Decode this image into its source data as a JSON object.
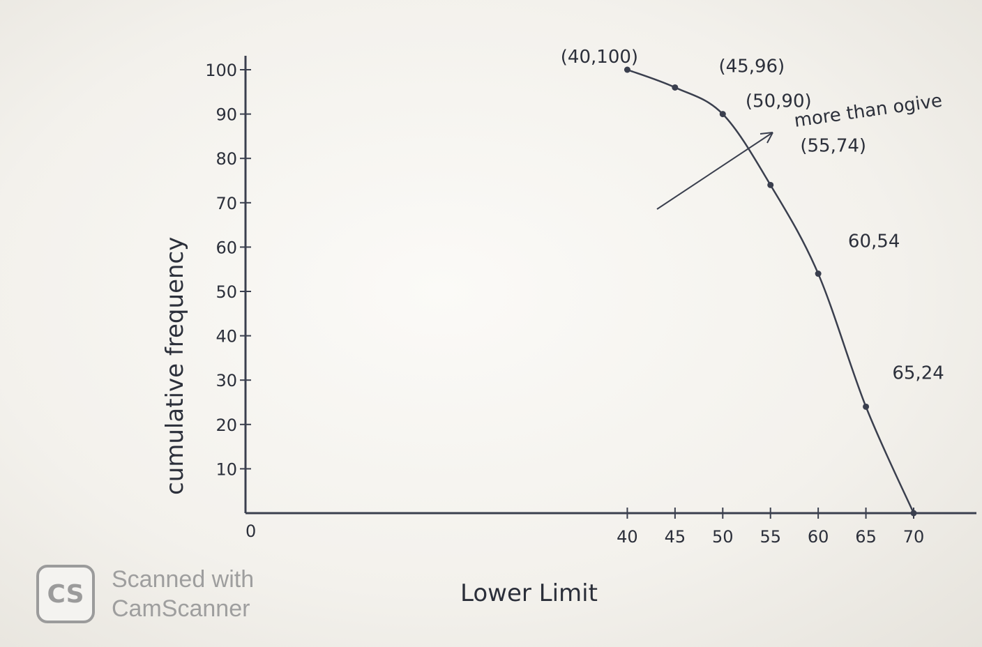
{
  "chart_data": {
    "type": "line",
    "title": "",
    "xlabel": "Lower Limit",
    "ylabel": "cumulative frequency",
    "xlim": [
      0,
      70
    ],
    "ylim": [
      0,
      100
    ],
    "x_ticks": [
      "40",
      "45",
      "50",
      "55",
      "60",
      "65",
      "70"
    ],
    "y_ticks": [
      "10",
      "20",
      "30",
      "40",
      "50",
      "60",
      "70",
      "80",
      "90",
      "100"
    ],
    "origin_label": "0",
    "series": [
      {
        "name": "more than ogive",
        "x": [
          40,
          45,
          50,
          55,
          60,
          65,
          70
        ],
        "y": [
          100,
          96,
          90,
          74,
          54,
          24,
          0
        ]
      }
    ],
    "point_labels": [
      "(40,100)",
      "(45,96)",
      "(50,90)",
      "(55,74)",
      "60,54",
      "65,24",
      ""
    ],
    "annotation": "more than ogive",
    "grid": false,
    "line_color": "#3a3f4e"
  },
  "watermark": {
    "logo_text": "CS",
    "line1": "Scanned with",
    "line2": "CamScanner"
  }
}
